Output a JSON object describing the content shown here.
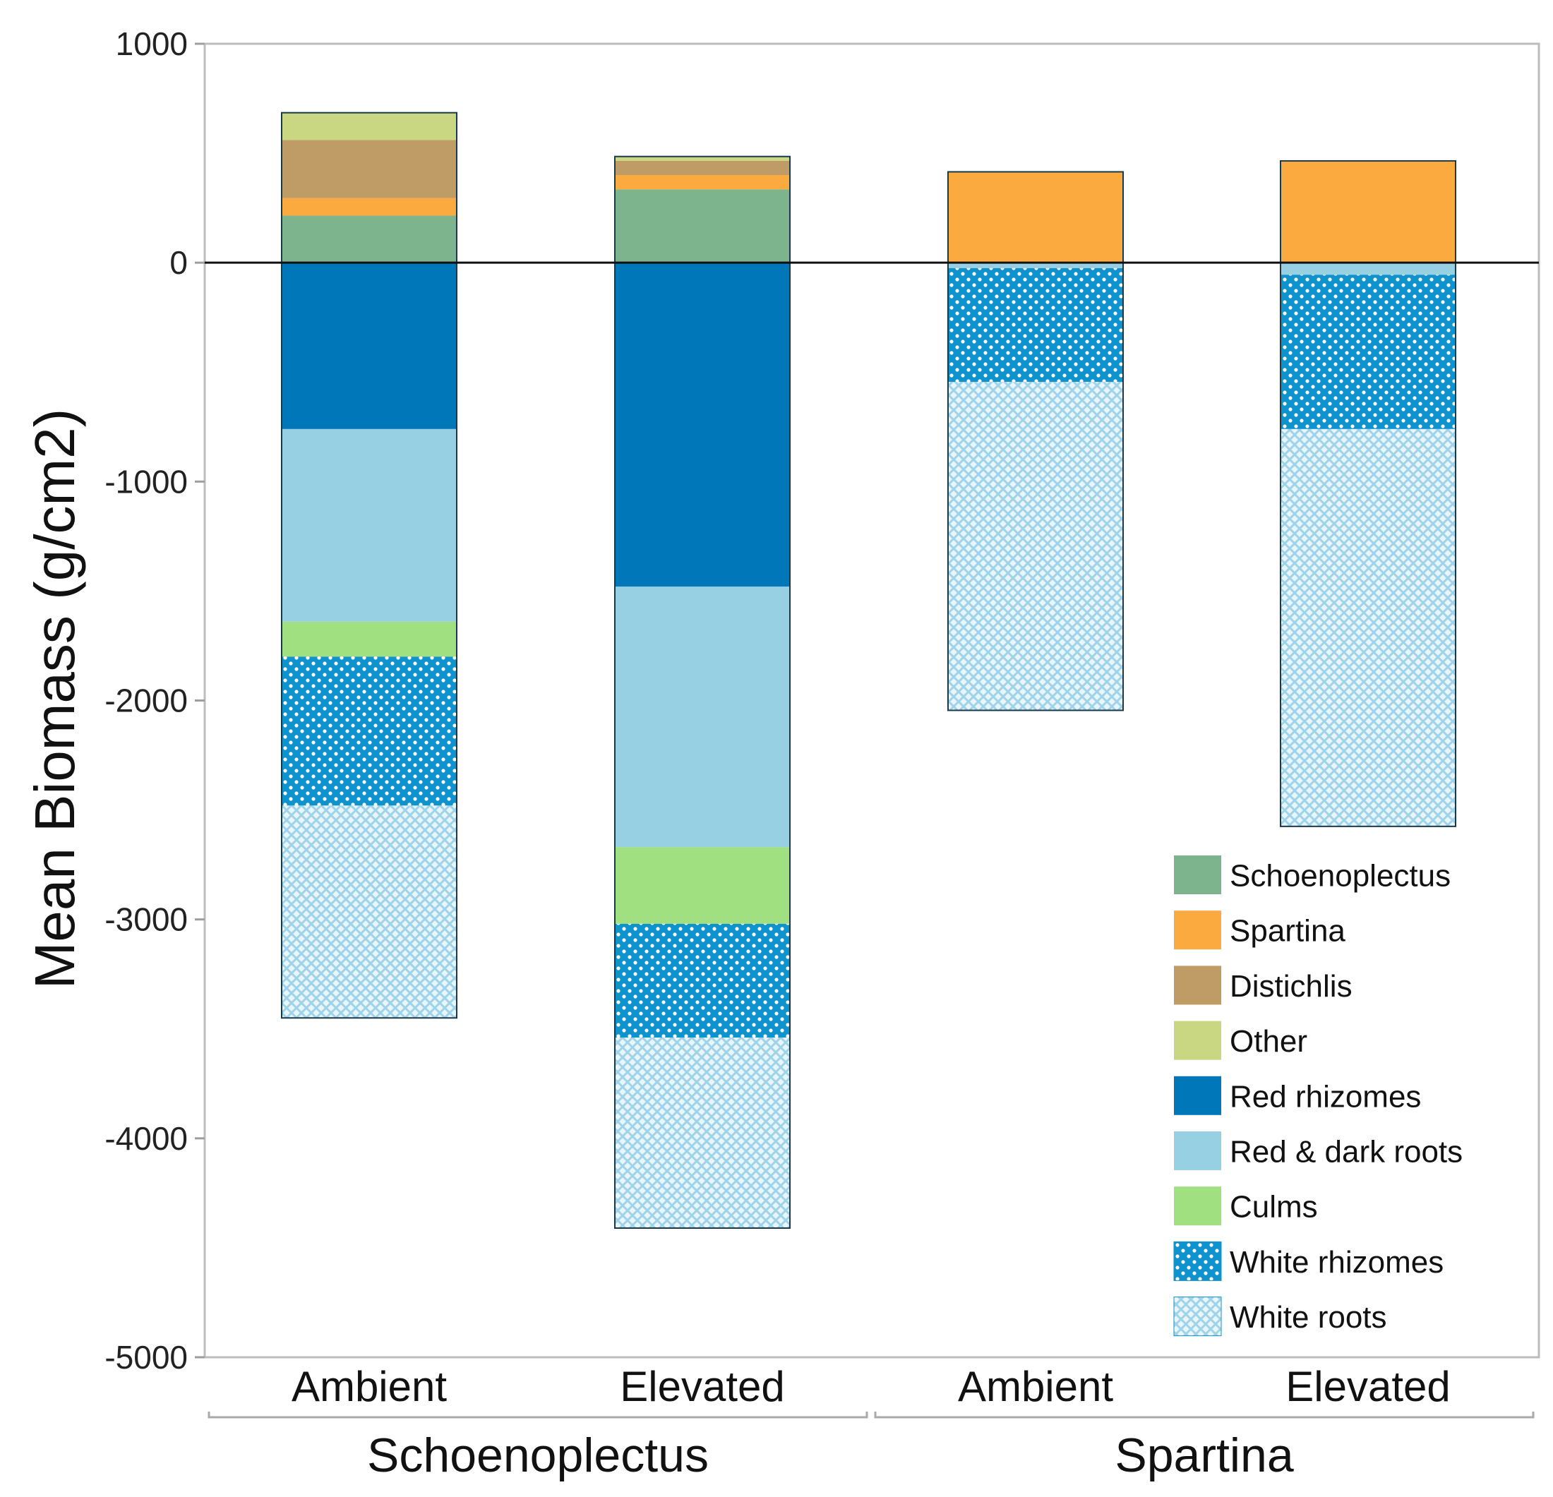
{
  "chart_data": {
    "type": "bar",
    "stacked": true,
    "title": "",
    "ylabel": "Mean Biomass (g/cm2)",
    "xlabel": "",
    "ylim": [
      -5000,
      1000
    ],
    "yticks": [
      1000,
      0,
      -1000,
      -2000,
      -3000,
      -4000,
      -5000
    ],
    "ytick_labels": [
      "1000",
      "0",
      "-1000",
      "-2000",
      "-3000",
      "-4000",
      "-5000"
    ],
    "categories": [
      "Ambient",
      "Elevated",
      "Ambient",
      "Elevated"
    ],
    "groups": [
      {
        "label": "Schoenoplectus",
        "categories": [
          0,
          1
        ]
      },
      {
        "label": "Spartina",
        "categories": [
          2,
          3
        ]
      }
    ],
    "series": [
      {
        "name": "Schoenoplectus",
        "color": "#7db38d",
        "pattern": "solid",
        "values": [
          215,
          335,
          0,
          0
        ]
      },
      {
        "name": "Spartina",
        "color": "#fbaa40",
        "pattern": "solid",
        "values": [
          80,
          65,
          415,
          465
        ]
      },
      {
        "name": "Distichlis",
        "color": "#bf9b65",
        "pattern": "solid",
        "values": [
          265,
          65,
          0,
          0
        ]
      },
      {
        "name": "Other",
        "color": "#c9d783",
        "pattern": "solid",
        "values": [
          125,
          20,
          0,
          0
        ]
      },
      {
        "name": "Red rhizomes",
        "color": "#0077b8",
        "pattern": "solid",
        "values": [
          -760,
          -1480,
          0,
          0
        ]
      },
      {
        "name": "Red & dark roots",
        "color": "#97cfe3",
        "pattern": "solid",
        "values": [
          -880,
          -1190,
          -25,
          -55
        ]
      },
      {
        "name": "Culms",
        "color": "#a0e080",
        "pattern": "solid",
        "values": [
          -160,
          -350,
          0,
          0
        ]
      },
      {
        "name": "White rhizomes",
        "color": "#0f93cc",
        "pattern": "dots",
        "values": [
          -680,
          -520,
          -520,
          -705
        ]
      },
      {
        "name": "White roots",
        "color": "#a9d8ee",
        "pattern": "crosshatch",
        "values": [
          -970,
          -870,
          -1500,
          -1815
        ]
      }
    ],
    "legend_position": "bottom-right",
    "grid": false
  }
}
